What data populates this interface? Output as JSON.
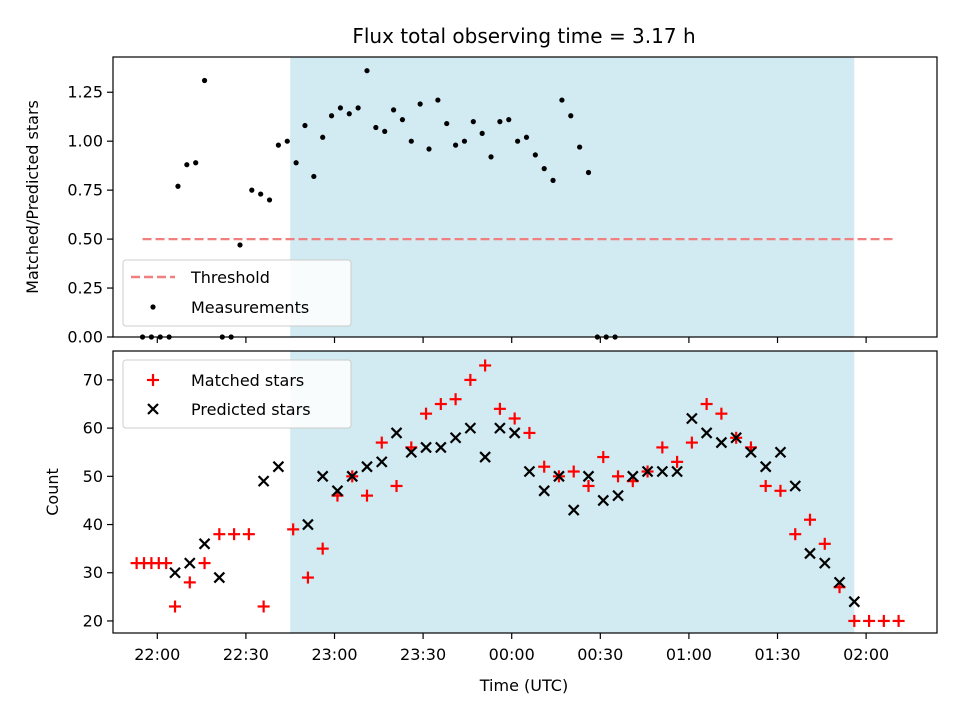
{
  "title": "Flux total observing time = 3.17 h",
  "chart_data": [
    {
      "type": "scatter",
      "panel": "top",
      "title": "Flux total observing time = 3.17 h",
      "xlabel": "",
      "ylabel": "Matched/Predicted stars",
      "ylim": [
        0,
        1.43
      ],
      "yticks": [
        0,
        0.25,
        0.5,
        0.75,
        1.0,
        1.25
      ],
      "ytick_labels": [
        "0.00",
        "0.25",
        "0.50",
        "0.75",
        "1.00",
        "1.25"
      ],
      "shaded_span": [
        "22:45",
        "01:56"
      ],
      "threshold": {
        "name": "Threshold",
        "y": 0.5,
        "x": [
          "21:55",
          "02:10"
        ],
        "color": "#f08080"
      },
      "series": [
        {
          "name": "Measurements",
          "color": "#000000",
          "marker": "dot",
          "points": [
            [
              "21:55",
              0
            ],
            [
              "21:58",
              0
            ],
            [
              "22:01",
              0
            ],
            [
              "22:04",
              0
            ],
            [
              "22:07",
              0.77
            ],
            [
              "22:10",
              0.88
            ],
            [
              "22:13",
              0.89
            ],
            [
              "22:16",
              1.31
            ],
            [
              "22:22",
              0
            ],
            [
              "22:25",
              0
            ],
            [
              "22:28",
              0.47
            ],
            [
              "22:32",
              0.75
            ],
            [
              "22:35",
              0.73
            ],
            [
              "22:38",
              0.7
            ],
            [
              "22:41",
              0.98
            ],
            [
              "22:44",
              1.0
            ],
            [
              "22:47",
              0.89
            ],
            [
              "22:50",
              1.08
            ],
            [
              "22:53",
              0.82
            ],
            [
              "22:56",
              1.02
            ],
            [
              "22:59",
              1.13
            ],
            [
              "23:02",
              1.17
            ],
            [
              "23:05",
              1.14
            ],
            [
              "23:08",
              1.17
            ],
            [
              "23:11",
              1.36
            ],
            [
              "23:14",
              1.07
            ],
            [
              "23:17",
              1.05
            ],
            [
              "23:20",
              1.16
            ],
            [
              "23:23",
              1.11
            ],
            [
              "23:26",
              1.0
            ],
            [
              "23:29",
              1.19
            ],
            [
              "23:32",
              0.96
            ],
            [
              "23:35",
              1.21
            ],
            [
              "23:38",
              1.09
            ],
            [
              "23:41",
              0.98
            ],
            [
              "23:44",
              1.0
            ],
            [
              "23:47",
              1.1
            ],
            [
              "23:50",
              1.04
            ],
            [
              "23:53",
              0.92
            ],
            [
              "23:56",
              1.1
            ],
            [
              "23:59",
              1.11
            ],
            [
              "00:02",
              1.0
            ],
            [
              "00:05",
              1.02
            ],
            [
              "00:08",
              0.93
            ],
            [
              "00:11",
              0.86
            ],
            [
              "00:14",
              0.8
            ],
            [
              "00:17",
              1.21
            ],
            [
              "00:20",
              1.13
            ],
            [
              "00:23",
              0.97
            ],
            [
              "00:26",
              0.84
            ],
            [
              "00:29",
              0
            ],
            [
              "00:32",
              0
            ],
            [
              "00:35",
              0
            ]
          ]
        }
      ],
      "legend": {
        "placement": "lower-left",
        "entries": [
          "Threshold",
          "Measurements"
        ]
      }
    },
    {
      "type": "scatter",
      "panel": "bottom",
      "xlabel": "Time (UTC)",
      "ylabel": "Count",
      "ylim": [
        17.5,
        76
      ],
      "yticks": [
        20,
        30,
        40,
        50,
        60,
        70
      ],
      "ytick_labels": [
        "20",
        "30",
        "40",
        "50",
        "60",
        "70"
      ],
      "xlim": [
        "21:45",
        "02:24"
      ],
      "xtick_labels": [
        "22:00",
        "22:30",
        "23:00",
        "23:30",
        "00:00",
        "00:30",
        "01:00",
        "01:30",
        "02:00"
      ],
      "shaded_span": [
        "22:45",
        "01:56"
      ],
      "series": [
        {
          "name": "Matched stars",
          "color": "#ff0000",
          "marker": "plus",
          "points": [
            [
              "21:53",
              32
            ],
            [
              "21:55.5",
              32
            ],
            [
              "21:58",
              32
            ],
            [
              "22:00.5",
              32
            ],
            [
              "22:03",
              32
            ],
            [
              "22:06",
              23
            ],
            [
              "22:11",
              28
            ],
            [
              "22:16",
              32
            ],
            [
              "22:21",
              38
            ],
            [
              "22:26",
              38
            ],
            [
              "22:31",
              38
            ],
            [
              "22:36",
              23
            ],
            [
              "22:46",
              39
            ],
            [
              "22:51",
              29
            ],
            [
              "22:56",
              35
            ],
            [
              "23:01",
              46
            ],
            [
              "23:06",
              50
            ],
            [
              "23:11",
              46
            ],
            [
              "23:16",
              57
            ],
            [
              "23:21",
              48
            ],
            [
              "23:26",
              56
            ],
            [
              "23:31",
              63
            ],
            [
              "23:36",
              65
            ],
            [
              "23:41",
              66
            ],
            [
              "23:46",
              70
            ],
            [
              "23:51",
              73
            ],
            [
              "23:56",
              64
            ],
            [
              "00:01",
              62
            ],
            [
              "00:06",
              59
            ],
            [
              "00:11",
              52
            ],
            [
              "00:16",
              50
            ],
            [
              "00:21",
              51
            ],
            [
              "00:26",
              48
            ],
            [
              "00:31",
              54
            ],
            [
              "00:36",
              50
            ],
            [
              "00:41",
              49
            ],
            [
              "00:46",
              51
            ],
            [
              "00:51",
              56
            ],
            [
              "00:56",
              53
            ],
            [
              "01:01",
              57
            ],
            [
              "01:06",
              65
            ],
            [
              "01:11",
              63
            ],
            [
              "01:16",
              58
            ],
            [
              "01:21",
              56
            ],
            [
              "01:26",
              48
            ],
            [
              "01:31",
              47
            ],
            [
              "01:36",
              38
            ],
            [
              "01:41",
              41
            ],
            [
              "01:46",
              36
            ],
            [
              "01:51",
              27
            ],
            [
              "01:56",
              20
            ],
            [
              "02:01",
              20
            ],
            [
              "02:06",
              20
            ],
            [
              "02:11",
              20
            ]
          ]
        },
        {
          "name": "Predicted stars",
          "color": "#000000",
          "marker": "x",
          "points": [
            [
              "22:06",
              30
            ],
            [
              "22:11",
              32
            ],
            [
              "22:16",
              36
            ],
            [
              "22:21",
              29
            ],
            [
              "22:36",
              49
            ],
            [
              "22:41",
              52
            ],
            [
              "22:51",
              40
            ],
            [
              "22:56",
              50
            ],
            [
              "23:01",
              47
            ],
            [
              "23:06",
              50
            ],
            [
              "23:11",
              52
            ],
            [
              "23:16",
              53
            ],
            [
              "23:21",
              59
            ],
            [
              "23:26",
              55
            ],
            [
              "23:31",
              56
            ],
            [
              "23:36",
              56
            ],
            [
              "23:41",
              58
            ],
            [
              "23:46",
              60
            ],
            [
              "23:51",
              54
            ],
            [
              "23:56",
              60
            ],
            [
              "00:01",
              59
            ],
            [
              "00:06",
              51
            ],
            [
              "00:11",
              47
            ],
            [
              "00:16",
              50
            ],
            [
              "00:21",
              43
            ],
            [
              "00:26",
              50
            ],
            [
              "00:31",
              45
            ],
            [
              "00:36",
              46
            ],
            [
              "00:41",
              50
            ],
            [
              "00:46",
              51
            ],
            [
              "00:51",
              51
            ],
            [
              "00:56",
              51
            ],
            [
              "01:01",
              62
            ],
            [
              "01:06",
              59
            ],
            [
              "01:11",
              57
            ],
            [
              "01:16",
              58
            ],
            [
              "01:21",
              55
            ],
            [
              "01:26",
              52
            ],
            [
              "01:31",
              55
            ],
            [
              "01:36",
              48
            ],
            [
              "01:41",
              34
            ],
            [
              "01:46",
              32
            ],
            [
              "01:51",
              28
            ],
            [
              "01:56",
              24
            ]
          ]
        }
      ],
      "legend": {
        "placement": "upper-left",
        "entries": [
          "Matched stars",
          "Predicted stars"
        ]
      }
    }
  ]
}
